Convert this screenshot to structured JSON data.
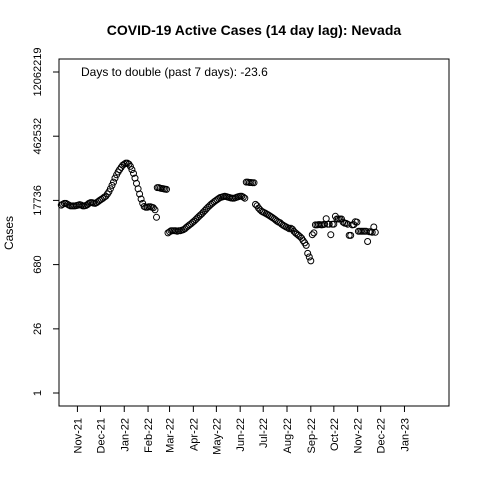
{
  "chart_data": {
    "type": "scatter",
    "title": "COVID-19 Active Cases (14 day lag): Nevada",
    "ylabel": "Cases",
    "xlabel": "",
    "y_scale": "log",
    "ylim": [
      1,
      12062219
    ],
    "y_ticks": [
      1,
      26,
      680,
      17736,
      462532,
      12062219
    ],
    "y_tick_labels": [
      "1",
      "26",
      "680",
      "17736",
      "462532",
      "12062219"
    ],
    "xlim": [
      "2021-10-08",
      "2023-02-28"
    ],
    "x_ticks": [
      "2021-11-01",
      "2021-12-01",
      "2022-01-01",
      "2022-02-01",
      "2022-03-01",
      "2022-04-01",
      "2022-05-01",
      "2022-06-01",
      "2022-07-01",
      "2022-08-01",
      "2022-09-01",
      "2022-10-01",
      "2022-11-01",
      "2022-12-01",
      "2023-01-01"
    ],
    "x_tick_labels": [
      "Nov-21",
      "Dec-21",
      "Jan-22",
      "Feb-22",
      "Mar-22",
      "Apr-22",
      "May-22",
      "Jun-22",
      "Jul-22",
      "Aug-22",
      "Sep-22",
      "Oct-22",
      "Nov-22",
      "Dec-22",
      "Jan-23"
    ],
    "annotation": "Days to double (past 7 days): -23.6",
    "grid": false,
    "legend": "none",
    "marker": "open-circle",
    "series": [
      {
        "points": [
          [
            "2021-10-11",
            14000
          ],
          [
            "2021-10-13",
            14600
          ],
          [
            "2021-10-15",
            15200
          ],
          [
            "2021-10-17",
            15200
          ],
          [
            "2021-10-19",
            14600
          ],
          [
            "2021-10-21",
            14000
          ],
          [
            "2021-10-23",
            13400
          ],
          [
            "2021-10-25",
            13400
          ],
          [
            "2021-10-27",
            13400
          ],
          [
            "2021-10-29",
            13400
          ],
          [
            "2021-10-31",
            13700
          ],
          [
            "2021-11-02",
            14000
          ],
          [
            "2021-11-04",
            14300
          ],
          [
            "2021-11-06",
            14000
          ],
          [
            "2021-11-08",
            13400
          ],
          [
            "2021-11-10",
            13400
          ],
          [
            "2021-11-12",
            13700
          ],
          [
            "2021-11-14",
            14300
          ],
          [
            "2021-11-16",
            15200
          ],
          [
            "2021-11-18",
            15900
          ],
          [
            "2021-11-20",
            15900
          ],
          [
            "2021-11-22",
            15500
          ],
          [
            "2021-11-24",
            15200
          ],
          [
            "2021-11-26",
            15900
          ],
          [
            "2021-11-28",
            16800
          ],
          [
            "2021-11-30",
            17700
          ],
          [
            "2021-12-02",
            18700
          ],
          [
            "2021-12-04",
            19600
          ],
          [
            "2021-12-06",
            21000
          ],
          [
            "2021-12-08",
            22000
          ],
          [
            "2021-12-10",
            24500
          ],
          [
            "2021-12-12",
            27500
          ],
          [
            "2021-12-14",
            32000
          ],
          [
            "2021-12-16",
            38000
          ],
          [
            "2021-12-18",
            45000
          ],
          [
            "2021-12-20",
            55000
          ],
          [
            "2021-12-22",
            65000
          ],
          [
            "2021-12-24",
            75000
          ],
          [
            "2021-12-26",
            85000
          ],
          [
            "2021-12-28",
            95000
          ],
          [
            "2021-12-30",
            106000
          ],
          [
            "2022-01-01",
            112000
          ],
          [
            "2022-01-03",
            118000
          ],
          [
            "2022-01-05",
            118000
          ],
          [
            "2022-01-07",
            112000
          ],
          [
            "2022-01-09",
            100000
          ],
          [
            "2022-01-11",
            85000
          ],
          [
            "2022-01-13",
            70000
          ],
          [
            "2022-01-15",
            55000
          ],
          [
            "2022-01-17",
            42000
          ],
          [
            "2022-01-19",
            32000
          ],
          [
            "2022-01-21",
            24500
          ],
          [
            "2022-01-23",
            19000
          ],
          [
            "2022-01-25",
            15200
          ],
          [
            "2022-01-27",
            13000
          ],
          [
            "2022-01-29",
            12500
          ],
          [
            "2022-01-31",
            12500
          ],
          [
            "2022-02-02",
            12800
          ],
          [
            "2022-02-04",
            12800
          ],
          [
            "2022-02-06",
            12500
          ],
          [
            "2022-02-08",
            12200
          ],
          [
            "2022-02-10",
            11000
          ],
          [
            "2022-02-12",
            7500
          ],
          [
            "2022-02-13",
            34000
          ],
          [
            "2022-02-15",
            34000
          ],
          [
            "2022-02-17",
            33000
          ],
          [
            "2022-02-19",
            32500
          ],
          [
            "2022-02-21",
            32000
          ],
          [
            "2022-02-23",
            31500
          ],
          [
            "2022-02-25",
            31000
          ],
          [
            "2022-02-27",
            3400
          ],
          [
            "2022-03-01",
            3600
          ],
          [
            "2022-03-03",
            3800
          ],
          [
            "2022-03-05",
            3800
          ],
          [
            "2022-03-07",
            3800
          ],
          [
            "2022-03-09",
            3800
          ],
          [
            "2022-03-11",
            3700
          ],
          [
            "2022-03-13",
            3800
          ],
          [
            "2022-03-15",
            3800
          ],
          [
            "2022-03-17",
            3900
          ],
          [
            "2022-03-19",
            4000
          ],
          [
            "2022-03-21",
            4200
          ],
          [
            "2022-03-23",
            4500
          ],
          [
            "2022-03-25",
            4800
          ],
          [
            "2022-03-27",
            5100
          ],
          [
            "2022-03-29",
            5400
          ],
          [
            "2022-03-31",
            5800
          ],
          [
            "2022-04-02",
            6200
          ],
          [
            "2022-04-04",
            6700
          ],
          [
            "2022-04-06",
            7200
          ],
          [
            "2022-04-08",
            7800
          ],
          [
            "2022-04-10",
            8400
          ],
          [
            "2022-04-12",
            9000
          ],
          [
            "2022-04-14",
            9800
          ],
          [
            "2022-04-16",
            10600
          ],
          [
            "2022-04-18",
            11500
          ],
          [
            "2022-04-20",
            12500
          ],
          [
            "2022-04-22",
            13500
          ],
          [
            "2022-04-24",
            14500
          ],
          [
            "2022-04-26",
            15500
          ],
          [
            "2022-04-28",
            16500
          ],
          [
            "2022-04-30",
            17500
          ],
          [
            "2022-05-02",
            18500
          ],
          [
            "2022-05-04",
            19500
          ],
          [
            "2022-05-06",
            20500
          ],
          [
            "2022-05-08",
            21000
          ],
          [
            "2022-05-10",
            21500
          ],
          [
            "2022-05-12",
            21800
          ],
          [
            "2022-05-14",
            21500
          ],
          [
            "2022-05-16",
            21000
          ],
          [
            "2022-05-18",
            20500
          ],
          [
            "2022-05-20",
            20000
          ],
          [
            "2022-05-22",
            19800
          ],
          [
            "2022-05-24",
            19800
          ],
          [
            "2022-05-26",
            20300
          ],
          [
            "2022-05-28",
            21000
          ],
          [
            "2022-05-30",
            21500
          ],
          [
            "2022-06-01",
            22000
          ],
          [
            "2022-06-03",
            22000
          ],
          [
            "2022-06-05",
            21000
          ],
          [
            "2022-06-07",
            19800
          ],
          [
            "2022-06-09",
            45000
          ],
          [
            "2022-06-11",
            45000
          ],
          [
            "2022-06-13",
            44000
          ],
          [
            "2022-06-15",
            44000
          ],
          [
            "2022-06-17",
            43500
          ],
          [
            "2022-06-19",
            43500
          ],
          [
            "2022-06-21",
            14500
          ],
          [
            "2022-06-23",
            13500
          ],
          [
            "2022-06-25",
            12000
          ],
          [
            "2022-06-27",
            11000
          ],
          [
            "2022-06-29",
            10200
          ],
          [
            "2022-07-01",
            9800
          ],
          [
            "2022-07-03",
            9400
          ],
          [
            "2022-07-05",
            9000
          ],
          [
            "2022-07-07",
            8600
          ],
          [
            "2022-07-09",
            8200
          ],
          [
            "2022-07-11",
            7800
          ],
          [
            "2022-07-13",
            7400
          ],
          [
            "2022-07-15",
            7000
          ],
          [
            "2022-07-17",
            6600
          ],
          [
            "2022-07-19",
            6200
          ],
          [
            "2022-07-21",
            5900
          ],
          [
            "2022-07-23",
            5700
          ],
          [
            "2022-07-25",
            5300
          ],
          [
            "2022-07-27",
            5000
          ],
          [
            "2022-07-29",
            4800
          ],
          [
            "2022-07-31",
            4600
          ],
          [
            "2022-08-02",
            4400
          ],
          [
            "2022-08-04",
            4200
          ],
          [
            "2022-08-06",
            4300
          ],
          [
            "2022-08-08",
            4100
          ],
          [
            "2022-08-10",
            3700
          ],
          [
            "2022-08-12",
            3400
          ],
          [
            "2022-08-14",
            3200
          ],
          [
            "2022-08-16",
            3000
          ],
          [
            "2022-08-18",
            2800
          ],
          [
            "2022-08-20",
            2600
          ],
          [
            "2022-08-22",
            2300
          ],
          [
            "2022-08-24",
            2050
          ],
          [
            "2022-08-26",
            1800
          ],
          [
            "2022-08-28",
            1200
          ],
          [
            "2022-08-30",
            1000
          ],
          [
            "2022-09-01",
            820
          ],
          [
            "2022-09-03",
            3100
          ],
          [
            "2022-09-05",
            3400
          ],
          [
            "2022-09-07",
            5100
          ],
          [
            "2022-09-09",
            5100
          ],
          [
            "2022-09-11",
            5200
          ],
          [
            "2022-09-13",
            5200
          ],
          [
            "2022-09-15",
            5100
          ],
          [
            "2022-09-17",
            5200
          ],
          [
            "2022-09-19",
            5300
          ],
          [
            "2022-09-21",
            7000
          ],
          [
            "2022-09-23",
            5300
          ],
          [
            "2022-09-25",
            5300
          ],
          [
            "2022-09-27",
            3100
          ],
          [
            "2022-09-29",
            5300
          ],
          [
            "2022-10-01",
            5300
          ],
          [
            "2022-10-03",
            7900
          ],
          [
            "2022-10-05",
            6900
          ],
          [
            "2022-10-07",
            6900
          ],
          [
            "2022-10-09",
            6900
          ],
          [
            "2022-10-11",
            6900
          ],
          [
            "2022-10-13",
            5900
          ],
          [
            "2022-10-15",
            5600
          ],
          [
            "2022-10-17",
            5500
          ],
          [
            "2022-10-19",
            5300
          ],
          [
            "2022-10-21",
            3000
          ],
          [
            "2022-10-23",
            3000
          ],
          [
            "2022-10-25",
            5100
          ],
          [
            "2022-10-27",
            5200
          ],
          [
            "2022-10-29",
            6000
          ],
          [
            "2022-10-31",
            5900
          ],
          [
            "2022-11-02",
            3700
          ],
          [
            "2022-11-04",
            3700
          ],
          [
            "2022-11-06",
            3700
          ],
          [
            "2022-11-08",
            3700
          ],
          [
            "2022-11-10",
            3700
          ],
          [
            "2022-11-12",
            3700
          ],
          [
            "2022-11-14",
            2200
          ],
          [
            "2022-11-16",
            3600
          ],
          [
            "2022-11-18",
            3600
          ],
          [
            "2022-11-20",
            3500
          ],
          [
            "2022-11-22",
            4600
          ],
          [
            "2022-11-24",
            3500
          ]
        ]
      }
    ]
  }
}
